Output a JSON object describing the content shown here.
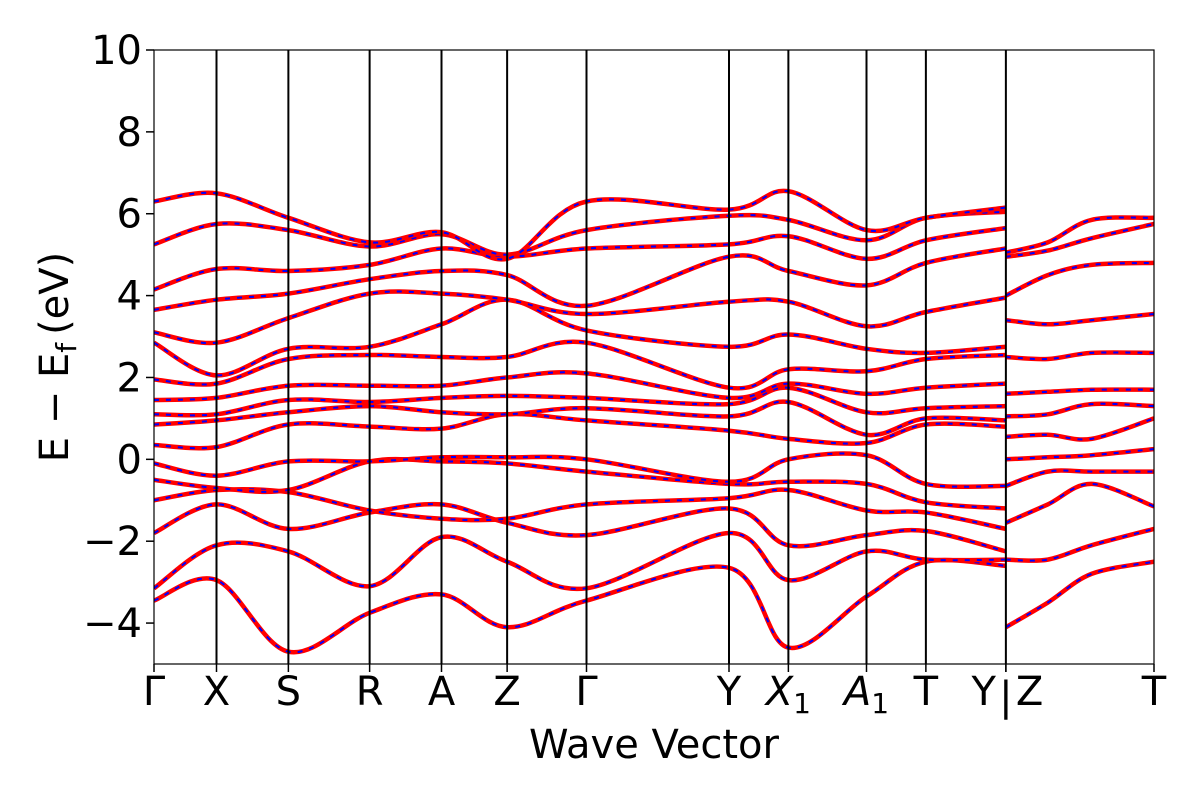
{
  "chart_data": {
    "type": "line",
    "title": "",
    "xlabel": "Wave Vector",
    "ylabel": "E − E",
    "ylabel_sub": "f",
    "ylabel_unit": "(eV)",
    "ylim": [
      -5,
      10
    ],
    "yticks": [
      "−4",
      "−2",
      "0",
      "2",
      "4",
      "6",
      "8",
      "10"
    ],
    "ytick_values": [
      -4,
      -2,
      0,
      2,
      4,
      6,
      8,
      10
    ],
    "xlim": [
      0,
      16.0
    ],
    "grid": false,
    "legend": "none",
    "colors": {
      "dft": "#ff0000",
      "model": "#0000ff"
    },
    "high_symmetry_points": [
      {
        "label": "Γ",
        "sub": "",
        "x": 0.0
      },
      {
        "label": "X",
        "sub": "",
        "x": 1.0
      },
      {
        "label": "S",
        "sub": "",
        "x": 2.15
      },
      {
        "label": "R",
        "sub": "",
        "x": 3.45
      },
      {
        "label": "A",
        "sub": "",
        "x": 4.6
      },
      {
        "label": "Z",
        "sub": "",
        "x": 5.65
      },
      {
        "label": "Γ",
        "sub": "",
        "x": 6.92
      },
      {
        "label": "Y",
        "sub": "",
        "x": 9.2
      },
      {
        "label": "X",
        "sub": "1",
        "x": 10.15
      },
      {
        "label": "A",
        "sub": "1",
        "x": 11.4
      },
      {
        "label": "T",
        "sub": "",
        "x": 12.35
      },
      {
        "label": "Y",
        "sub": "",
        "x": 13.63
      },
      {
        "label": "Z",
        "sub": "",
        "x": 13.63
      },
      {
        "label": "T",
        "sub": "",
        "x": 16.0
      }
    ],
    "break_separator": "|",
    "segments": [
      {
        "x": [
          0.0,
          1.0,
          2.15,
          3.45,
          4.6,
          5.65,
          6.92,
          9.2,
          10.15,
          11.4,
          12.35,
          13.63
        ],
        "bands": [
          [
            -3.45,
            -2.95,
            -4.7,
            -3.75,
            -3.3,
            -4.1,
            -3.45,
            -2.65,
            -4.6,
            -3.35,
            -2.5,
            -2.6
          ],
          [
            -3.15,
            -2.1,
            -2.25,
            -3.1,
            -1.9,
            -2.5,
            -3.15,
            -1.8,
            -2.95,
            -2.25,
            -2.45,
            -2.45
          ],
          [
            -1.8,
            -1.1,
            -1.7,
            -1.3,
            -1.1,
            -1.55,
            -1.85,
            -1.2,
            -2.1,
            -1.85,
            -1.75,
            -2.25
          ],
          [
            -1.0,
            -0.75,
            -0.8,
            -1.25,
            -1.45,
            -1.45,
            -1.1,
            -0.95,
            -0.75,
            -1.25,
            -1.3,
            -1.7
          ],
          [
            -0.5,
            -0.7,
            -0.75,
            -0.05,
            -0.05,
            -0.1,
            -0.3,
            -0.6,
            -0.55,
            -0.6,
            -1.05,
            -1.2
          ],
          [
            -0.1,
            -0.4,
            -0.05,
            -0.05,
            0.05,
            0.05,
            0.0,
            -0.55,
            0.0,
            0.1,
            -0.6,
            -0.65
          ],
          [
            0.35,
            0.3,
            0.85,
            0.8,
            0.75,
            1.1,
            0.95,
            0.7,
            0.5,
            0.4,
            0.85,
            0.8
          ],
          [
            0.85,
            0.95,
            1.15,
            1.3,
            1.15,
            1.1,
            1.25,
            1.05,
            1.4,
            0.6,
            1.0,
            0.95
          ],
          [
            1.1,
            1.1,
            1.45,
            1.4,
            1.5,
            1.55,
            1.5,
            1.35,
            1.75,
            1.15,
            1.25,
            1.3
          ],
          [
            1.45,
            1.5,
            1.8,
            1.8,
            1.8,
            2.0,
            2.1,
            1.5,
            1.85,
            1.6,
            1.75,
            1.85
          ],
          [
            1.95,
            1.85,
            2.45,
            2.55,
            2.5,
            2.5,
            2.85,
            1.75,
            2.2,
            2.15,
            2.45,
            2.55
          ],
          [
            2.85,
            2.05,
            2.7,
            2.75,
            3.3,
            3.9,
            3.15,
            2.75,
            3.05,
            2.7,
            2.6,
            2.75
          ],
          [
            3.1,
            2.85,
            3.45,
            4.05,
            4.05,
            3.9,
            3.55,
            3.85,
            3.85,
            3.25,
            3.6,
            3.95
          ],
          [
            3.65,
            3.9,
            4.05,
            4.4,
            4.6,
            4.5,
            3.75,
            4.95,
            4.6,
            4.25,
            4.8,
            5.15
          ],
          [
            4.15,
            4.65,
            4.6,
            4.75,
            5.15,
            4.95,
            5.15,
            5.25,
            5.45,
            4.9,
            5.35,
            5.65
          ],
          [
            5.25,
            5.75,
            5.6,
            5.2,
            5.5,
            5.0,
            5.6,
            5.95,
            5.85,
            5.35,
            5.9,
            6.05
          ],
          [
            6.3,
            6.5,
            5.9,
            5.3,
            5.55,
            4.9,
            6.3,
            6.1,
            6.55,
            5.6,
            5.9,
            6.15
          ]
        ]
      },
      {
        "x": [
          13.63,
          14.3,
          15.0,
          16.0
        ],
        "bands": [
          [
            -4.1,
            -3.5,
            -2.8,
            -2.5
          ],
          [
            -2.45,
            -2.45,
            -2.1,
            -1.7
          ],
          [
            -1.55,
            -1.1,
            -0.6,
            -1.15
          ],
          [
            -0.65,
            -0.3,
            -0.3,
            -0.3
          ],
          [
            0.0,
            0.05,
            0.1,
            0.25
          ],
          [
            0.55,
            0.6,
            0.5,
            1.0
          ],
          [
            1.05,
            1.1,
            1.35,
            1.3
          ],
          [
            1.6,
            1.65,
            1.7,
            1.7
          ],
          [
            2.5,
            2.45,
            2.6,
            2.6
          ],
          [
            3.4,
            3.3,
            3.4,
            3.55
          ],
          [
            4.0,
            4.5,
            4.75,
            4.8
          ],
          [
            4.95,
            5.1,
            5.4,
            5.75
          ],
          [
            5.05,
            5.3,
            5.85,
            5.9
          ]
        ]
      }
    ]
  }
}
